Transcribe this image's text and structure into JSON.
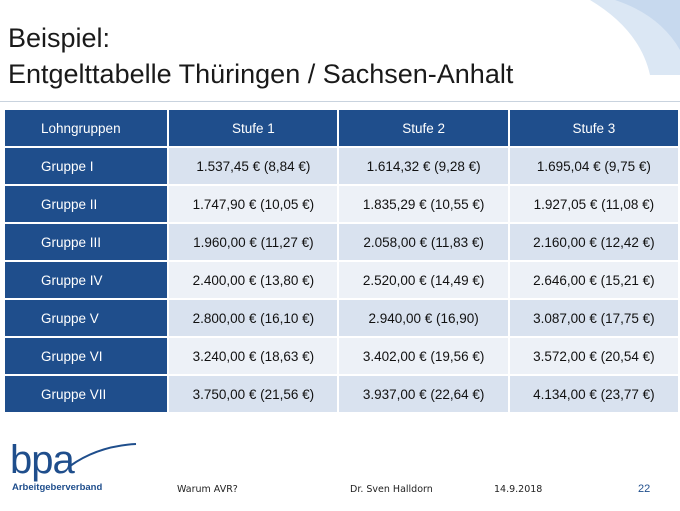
{
  "title": {
    "line1": "Beispiel:",
    "line2": "Entgelttabelle Thüringen / Sachsen-Anhalt"
  },
  "table": {
    "corner": "Lohngruppen",
    "columns": [
      "Stufe 1",
      "Stufe 2",
      "Stufe 3"
    ],
    "rows": [
      {
        "label": "Gruppe I",
        "values": [
          "1.537,45 € (8,84 €)",
          "1.614,32 € (9,28 €)",
          "1.695,04 € (9,75 €)"
        ]
      },
      {
        "label": "Gruppe II",
        "values": [
          "1.747,90 € (10,05 €)",
          "1.835,29 € (10,55 €)",
          "1.927,05 € (11,08 €)"
        ]
      },
      {
        "label": "Gruppe III",
        "values": [
          "1.960,00 € (11,27 €)",
          "2.058,00 € (11,83 €)",
          "2.160,00 € (12,42 €)"
        ]
      },
      {
        "label": "Gruppe IV",
        "values": [
          "2.400,00 € (13,80 €)",
          "2.520,00 € (14,49 €)",
          "2.646,00 € (15,21 €)"
        ]
      },
      {
        "label": "Gruppe V",
        "values": [
          "2.800,00 € (16,10 €)",
          "2.940,00 € (16,90)",
          "3.087,00 € (17,75 €)"
        ]
      },
      {
        "label": "Gruppe VI",
        "values": [
          "3.240,00 € (18,63 €)",
          "3.402,00 € (19,56 €)",
          "3.572,00 € (20,54 €)"
        ]
      },
      {
        "label": "Gruppe VII",
        "values": [
          "3.750,00 € (21,56 €)",
          "3.937,00 € (22,64 €)",
          "4.134,00 € (23,77 €)"
        ]
      }
    ]
  },
  "footer": {
    "logo_text": "bpa",
    "logo_subtitle": "Arbeitgeberverband",
    "left_text": "Warum AVR?",
    "author": "Dr. Sven Halldorn",
    "date": "14.9.2018",
    "page_number": "22"
  },
  "colors": {
    "header_blue": "#1f4e8c",
    "band_dark": "#d9e2ef",
    "band_light": "#edf1f7"
  }
}
